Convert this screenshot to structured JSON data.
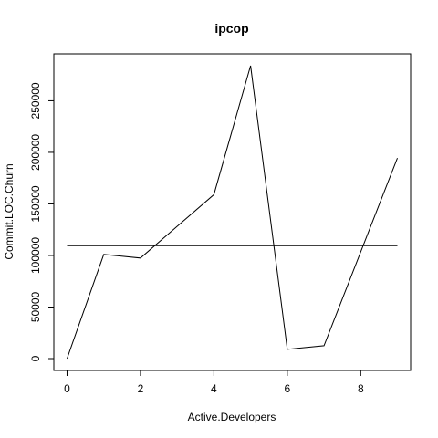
{
  "chart_data": {
    "type": "line",
    "title": "ipcop",
    "xlabel": "Active.Developers",
    "ylabel": "Commit.LOC.Churn",
    "xlim": [
      -0.36,
      9.36
    ],
    "ylim": [
      -11500,
      295500
    ],
    "x_ticks": [
      0,
      2,
      4,
      6,
      8
    ],
    "x_tick_labels": [
      "0",
      "2",
      "4",
      "6",
      "8"
    ],
    "y_ticks": [
      0,
      50000,
      100000,
      150000,
      200000,
      250000
    ],
    "y_tick_labels": [
      "0",
      "50000",
      "100000",
      "150000",
      "200000",
      "250000"
    ],
    "grid": false,
    "legend": "none",
    "series": [
      {
        "x": [
          0,
          1,
          2,
          4,
          5,
          6,
          7,
          9
        ],
        "y": [
          0,
          101000,
          97500,
          159000,
          284000,
          9000,
          12500,
          194500
        ]
      }
    ],
    "reference_line": {
      "x": [
        0,
        9
      ],
      "y": [
        109500,
        109500
      ]
    }
  }
}
